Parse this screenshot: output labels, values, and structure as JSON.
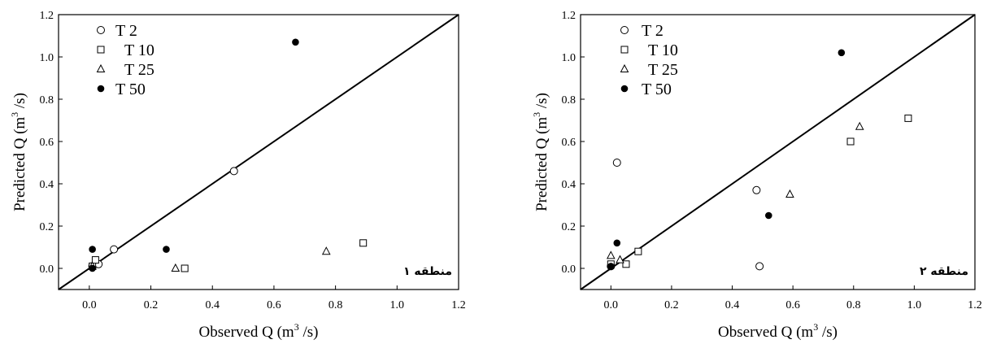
{
  "chart_data": [
    {
      "type": "scatter",
      "xlabel": {
        "before": "Observed Q (m",
        "sup": "3",
        "after": " /s)"
      },
      "ylabel": {
        "before": "Predicted Q (m",
        "sup": "3",
        "after": " /s)"
      },
      "xlim": [
        -0.1,
        1.2
      ],
      "ylim": [
        -0.1,
        1.2
      ],
      "ticks": [
        0.0,
        0.2,
        0.4,
        0.6,
        0.8,
        1.0,
        1.2
      ],
      "tick_labels": [
        "0.0",
        "0.2",
        "0.4",
        "0.6",
        "0.8",
        "1.0",
        "1.2"
      ],
      "annotation": "منطقه ۱",
      "reference_line": "1:1",
      "legend_position": "top-left",
      "series": [
        {
          "name": "T 2",
          "marker": "open-circle",
          "points": [
            [
              0.01,
              0.01
            ],
            [
              0.03,
              0.02
            ],
            [
              0.08,
              0.09
            ],
            [
              0.47,
              0.46
            ]
          ]
        },
        {
          "name": "T 10",
          "marker": "open-square",
          "points": [
            [
              0.01,
              0.01
            ],
            [
              0.02,
              0.04
            ],
            [
              0.31,
              0.0
            ],
            [
              0.89,
              0.12
            ]
          ]
        },
        {
          "name": "T 25",
          "marker": "open-triangle",
          "points": [
            [
              0.01,
              0.01
            ],
            [
              0.28,
              0.0
            ],
            [
              0.77,
              0.08
            ]
          ]
        },
        {
          "name": "T 50",
          "marker": "filled-circle",
          "points": [
            [
              0.01,
              0.09
            ],
            [
              0.01,
              0.0
            ],
            [
              0.25,
              0.09
            ],
            [
              0.67,
              1.07
            ]
          ]
        }
      ]
    },
    {
      "type": "scatter",
      "xlabel": {
        "before": "Observed Q (m",
        "sup": "3",
        "after": " /s)"
      },
      "ylabel": {
        "before": "Predicted Q (m",
        "sup": "3",
        "after": " /s)"
      },
      "xlim": [
        -0.1,
        1.2
      ],
      "ylim": [
        -0.1,
        1.2
      ],
      "ticks": [
        0.0,
        0.2,
        0.4,
        0.6,
        0.8,
        1.0,
        1.2
      ],
      "tick_labels": [
        "0.0",
        "0.2",
        "0.4",
        "0.6",
        "0.8",
        "1.0",
        "1.2"
      ],
      "annotation": "منطقه ۲",
      "reference_line": "1:1",
      "legend_position": "top-left",
      "series": [
        {
          "name": "T 2",
          "marker": "open-circle",
          "points": [
            [
              0.02,
              0.5
            ],
            [
              0.48,
              0.37
            ],
            [
              0.49,
              0.01
            ],
            [
              0.0,
              0.01
            ]
          ]
        },
        {
          "name": "T 10",
          "marker": "open-square",
          "points": [
            [
              0.0,
              0.02
            ],
            [
              0.05,
              0.02
            ],
            [
              0.09,
              0.08
            ],
            [
              0.79,
              0.6
            ],
            [
              0.98,
              0.71
            ]
          ]
        },
        {
          "name": "T 25",
          "marker": "open-triangle",
          "points": [
            [
              0.0,
              0.06
            ],
            [
              0.03,
              0.04
            ],
            [
              0.59,
              0.35
            ],
            [
              0.82,
              0.67
            ]
          ]
        },
        {
          "name": "T 50",
          "marker": "filled-circle",
          "points": [
            [
              0.0,
              0.01
            ],
            [
              0.02,
              0.12
            ],
            [
              0.52,
              0.25
            ],
            [
              0.76,
              1.02
            ]
          ]
        }
      ]
    }
  ]
}
